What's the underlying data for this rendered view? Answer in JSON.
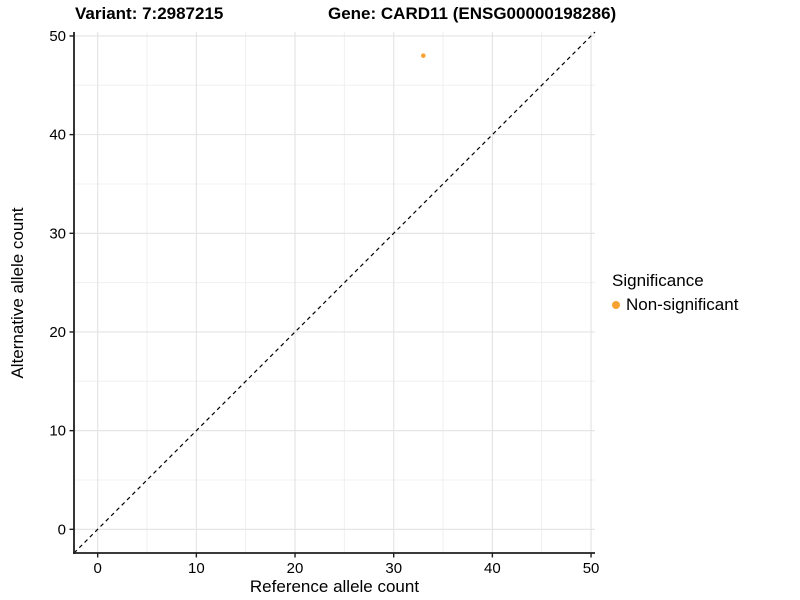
{
  "titles": {
    "variant": "Variant: 7:2987215",
    "gene": "Gene: CARD11 (ENSG00000198286)"
  },
  "legend": {
    "title": "Significance",
    "items": [
      {
        "label": "Non-significant",
        "color": "#F9A232"
      }
    ]
  },
  "chart_data": {
    "type": "scatter",
    "xlabel": "Reference allele count",
    "ylabel": "Alternative allele count",
    "xlim": [
      -2.4,
      50.4
    ],
    "ylim": [
      -2.4,
      50.4
    ],
    "x_ticks": [
      0,
      10,
      20,
      30,
      40,
      50
    ],
    "y_ticks": [
      0,
      10,
      20,
      30,
      40,
      50
    ],
    "x_minor_ticks": [
      5,
      15,
      25,
      35,
      45
    ],
    "y_minor_ticks": [
      5,
      15,
      25,
      35,
      45
    ],
    "grid": true,
    "legend_position": "right",
    "identity_line": {
      "style": "dashed",
      "slope": 1,
      "intercept": 0
    },
    "series": [
      {
        "name": "Non-significant",
        "color": "#F9A232",
        "points": [
          {
            "x": 33,
            "y": 48
          }
        ]
      }
    ]
  },
  "colors": {
    "background": "#FFFFFF",
    "grid_major": "#E3E3E3",
    "grid_minor": "#F0F0F0",
    "axis_line": "#1F1F1F",
    "tick_mark": "#1F1F1F",
    "text": "#000000",
    "identity_line": "#000000"
  }
}
